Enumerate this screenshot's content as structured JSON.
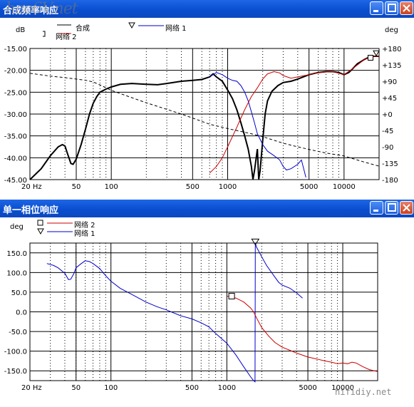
{
  "window1": {
    "title": "合成频率响应",
    "watermark_logo": "hao6V.net",
    "y_left_unit": "dB",
    "y_right_unit": "deg",
    "legend": [
      {
        "name": "合成",
        "marker": "none",
        "color": "#000000"
      },
      {
        "name": "网络 2",
        "marker": "square",
        "color": "#cc0000"
      },
      {
        "name": "网络 1",
        "marker": "triangle",
        "color": "#0000cc"
      }
    ]
  },
  "window2": {
    "title": "单一相位响应",
    "y_unit": "deg",
    "legend": [
      {
        "name": "网络 2",
        "marker": "square",
        "color": "#cc0000"
      },
      {
        "name": "网络 1",
        "marker": "triangle",
        "color": "#0000cc"
      }
    ]
  },
  "watermark": "hifidiy.net",
  "colors": {
    "titlebar": "#0a4fd0",
    "net1": "#0000cc",
    "net2": "#cc0000",
    "sum": "#000000"
  },
  "chart_data": [
    {
      "type": "line",
      "title": "合成频率响应",
      "xscale": "log",
      "xlim": [
        20,
        20000
      ],
      "x_ticks": [
        "20 Hz",
        "50",
        "100",
        "500",
        "1000",
        "5000",
        "10000"
      ],
      "ylim": [
        -45,
        -15
      ],
      "y_ticks": [
        "-15.00",
        "-20.00",
        "-25.00",
        "-30.00",
        "-35.00",
        "-40.00",
        "-45.00"
      ],
      "y2lim": [
        -180,
        180
      ],
      "y2_ticks": [
        "+180",
        "+135",
        "+90",
        "+45",
        "+0",
        "-45",
        "-90",
        "-135",
        "-180"
      ],
      "ylabel": "dB",
      "y2label": "deg",
      "series": [
        {
          "name": "合成",
          "axis": "left",
          "style": "solid",
          "points": [
            [
              20,
              -45
            ],
            [
              25,
              -42.5
            ],
            [
              30,
              -39.5
            ],
            [
              35,
              -37.5
            ],
            [
              38,
              -37
            ],
            [
              40,
              -37.3
            ],
            [
              42,
              -39
            ],
            [
              45,
              -41.3
            ],
            [
              47,
              -41.5
            ],
            [
              50,
              -40.3
            ],
            [
              55,
              -37
            ],
            [
              60,
              -33.5
            ],
            [
              65,
              -30
            ],
            [
              70,
              -27.5
            ],
            [
              75,
              -26
            ],
            [
              80,
              -25
            ],
            [
              90,
              -24.3
            ],
            [
              100,
              -23.8
            ],
            [
              120,
              -23.2
            ],
            [
              150,
              -23
            ],
            [
              200,
              -23.2
            ],
            [
              250,
              -23.3
            ],
            [
              300,
              -23
            ],
            [
              400,
              -22.5
            ],
            [
              500,
              -22.3
            ],
            [
              600,
              -22.1
            ],
            [
              700,
              -21.5
            ],
            [
              750,
              -20.8
            ],
            [
              800,
              -21.5
            ],
            [
              900,
              -22.5
            ],
            [
              1000,
              -24.5
            ],
            [
              1100,
              -26.5
            ],
            [
              1200,
              -29
            ],
            [
              1300,
              -32
            ],
            [
              1400,
              -35
            ],
            [
              1500,
              -38
            ],
            [
              1600,
              -42
            ],
            [
              1650,
              -45
            ],
            [
              1700,
              -43
            ],
            [
              1800,
              -38
            ],
            [
              1850,
              -45
            ],
            [
              1900,
              -43
            ],
            [
              2000,
              -36
            ],
            [
              2100,
              -30
            ],
            [
              2200,
              -27
            ],
            [
              2400,
              -24.8
            ],
            [
              2700,
              -23.5
            ],
            [
              3000,
              -22.8
            ],
            [
              3500,
              -22.5
            ],
            [
              4000,
              -22
            ],
            [
              5000,
              -21
            ],
            [
              6000,
              -20.5
            ],
            [
              7000,
              -20.3
            ],
            [
              8000,
              -20.3
            ],
            [
              9000,
              -20.5
            ],
            [
              10000,
              -21
            ],
            [
              11000,
              -20.5
            ],
            [
              12000,
              -19.5
            ],
            [
              13000,
              -18.5
            ],
            [
              15000,
              -17.5
            ],
            [
              17000,
              -16.8
            ],
            [
              20000,
              -16.8
            ]
          ]
        },
        {
          "name": "网络 1",
          "axis": "left",
          "style": "solid",
          "points": [
            [
              700,
              -21.5
            ],
            [
              800,
              -20.5
            ],
            [
              900,
              -21
            ],
            [
              1000,
              -21.8
            ],
            [
              1100,
              -22.3
            ],
            [
              1200,
              -22.5
            ],
            [
              1300,
              -23.5
            ],
            [
              1400,
              -25
            ],
            [
              1500,
              -27
            ],
            [
              1600,
              -29.5
            ],
            [
              1700,
              -32
            ],
            [
              1800,
              -34.5
            ],
            [
              2000,
              -37
            ],
            [
              2200,
              -38.5
            ],
            [
              2500,
              -39.5
            ],
            [
              2800,
              -40.5
            ],
            [
              3000,
              -42
            ],
            [
              3200,
              -42.8
            ],
            [
              3500,
              -42.5
            ],
            [
              4000,
              -41.5
            ],
            [
              4300,
              -40.5
            ],
            [
              4500,
              -42.5
            ],
            [
              4700,
              -44.5
            ]
          ]
        },
        {
          "name": "网络 2",
          "axis": "left",
          "style": "solid",
          "points": [
            [
              700,
              -43.5
            ],
            [
              800,
              -42
            ],
            [
              900,
              -40
            ],
            [
              1000,
              -37.5
            ],
            [
              1200,
              -33
            ],
            [
              1400,
              -29
            ],
            [
              1600,
              -26
            ],
            [
              1800,
              -24
            ],
            [
              2000,
              -22
            ],
            [
              2200,
              -20.8
            ],
            [
              2500,
              -20.3
            ],
            [
              2800,
              -20.6
            ],
            [
              3000,
              -21.2
            ],
            [
              3500,
              -21.8
            ],
            [
              4000,
              -21.5
            ],
            [
              5000,
              -21
            ],
            [
              6000,
              -20.5
            ],
            [
              8000,
              -20.3
            ],
            [
              10000,
              -21
            ],
            [
              12000,
              -19.5
            ],
            [
              15000,
              -17.5
            ],
            [
              18000,
              -16.8
            ],
            [
              20000,
              -16.8
            ]
          ]
        },
        {
          "name": "相位",
          "axis": "right",
          "style": "dashed",
          "points": [
            [
              20,
              112
            ],
            [
              30,
              104
            ],
            [
              40,
              100
            ],
            [
              50,
              96
            ],
            [
              60,
              93
            ],
            [
              70,
              88
            ],
            [
              80,
              80
            ],
            [
              100,
              65
            ],
            [
              150,
              45
            ],
            [
              200,
              31
            ],
            [
              300,
              13
            ],
            [
              400,
              0
            ],
            [
              500,
              -11
            ],
            [
              700,
              -28
            ],
            [
              1000,
              -40
            ],
            [
              1500,
              -52
            ],
            [
              2000,
              -62
            ],
            [
              2500,
              -72
            ],
            [
              3000,
              -80
            ],
            [
              4000,
              -90
            ],
            [
              5000,
              -97
            ],
            [
              7000,
              -107
            ],
            [
              10000,
              -115
            ],
            [
              15000,
              -132
            ],
            [
              20000,
              -143
            ]
          ]
        }
      ]
    },
    {
      "type": "line",
      "title": "单一相位响应",
      "xscale": "log",
      "xlim": [
        20,
        20000
      ],
      "x_ticks": [
        "20 Hz",
        "50",
        "100",
        "500",
        "1000",
        "5000",
        "10000"
      ],
      "ylim": [
        -175,
        175
      ],
      "y_ticks": [
        "150.0",
        "100.0",
        "50.0",
        "0.0",
        "-50.0",
        "-100.0",
        "-150.0"
      ],
      "ylabel": "deg",
      "series": [
        {
          "name": "网络 1",
          "points": [
            [
              28,
              123
            ],
            [
              32,
              118
            ],
            [
              35,
              112
            ],
            [
              40,
              98
            ],
            [
              43,
              82
            ],
            [
              45,
              83
            ],
            [
              48,
              98
            ],
            [
              50,
              112
            ],
            [
              55,
              122
            ],
            [
              60,
              130
            ],
            [
              65,
              128
            ],
            [
              70,
              123
            ],
            [
              80,
              110
            ],
            [
              90,
              92
            ],
            [
              100,
              78
            ],
            [
              120,
              60
            ],
            [
              150,
              45
            ],
            [
              200,
              25
            ],
            [
              250,
              13
            ],
            [
              300,
              5
            ],
            [
              400,
              -10
            ],
            [
              500,
              -18
            ],
            [
              600,
              -28
            ],
            [
              700,
              -38
            ],
            [
              800,
              -55
            ],
            [
              1000,
              -80
            ],
            [
              1200,
              -110
            ],
            [
              1400,
              -140
            ],
            [
              1600,
              -165
            ],
            [
              1700,
              -175
            ],
            [
              1750,
              -178
            ],
            [
              1760,
              175
            ],
            [
              1800,
              165
            ],
            [
              2000,
              140
            ],
            [
              2200,
              118
            ],
            [
              2500,
              95
            ],
            [
              2800,
              75
            ],
            [
              3000,
              68
            ],
            [
              3500,
              60
            ],
            [
              4000,
              48
            ],
            [
              4500,
              35
            ]
          ]
        },
        {
          "name": "网络 2",
          "points": [
            [
              1000,
              40
            ],
            [
              1200,
              35
            ],
            [
              1400,
              25
            ],
            [
              1600,
              10
            ],
            [
              1700,
              0
            ],
            [
              1800,
              -15
            ],
            [
              2000,
              -40
            ],
            [
              2300,
              -62
            ],
            [
              2600,
              -78
            ],
            [
              3000,
              -90
            ],
            [
              3500,
              -98
            ],
            [
              4000,
              -105
            ],
            [
              5000,
              -115
            ],
            [
              6000,
              -120
            ],
            [
              7000,
              -125
            ],
            [
              8000,
              -128
            ],
            [
              9000,
              -132
            ],
            [
              10000,
              -130
            ],
            [
              11000,
              -132
            ],
            [
              12000,
              -128
            ],
            [
              13000,
              -130
            ],
            [
              15000,
              -140
            ],
            [
              17000,
              -147
            ],
            [
              20000,
              -152
            ]
          ]
        }
      ]
    }
  ]
}
